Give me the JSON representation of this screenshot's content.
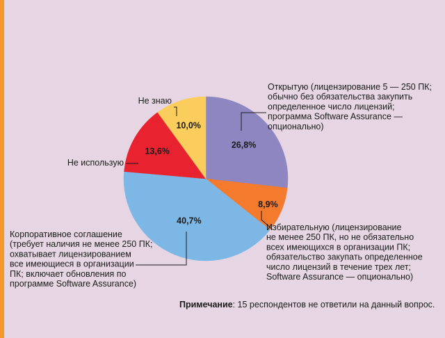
{
  "chart_data": {
    "type": "pie",
    "title": "",
    "slices": [
      {
        "label_lines": [
          "Открытую (лицензирование 5 — 250 ПК;",
          "обычно без обязательства закупить",
          "определенное число лицензий;",
          "программа Software Assurance —",
          "опционально)"
        ],
        "value": 26.8,
        "value_label": "26,8%",
        "color": "#8e86c0"
      },
      {
        "label_lines": [
          "Избирательную (лицензирование",
          "не менее 250 ПК, но не обязательно",
          "всех имеющихся в организации ПК;",
          "обязательство закупать определенное",
          "число лицензий в течение трех лет;",
          "Software Assurance — опционально)"
        ],
        "value": 8.9,
        "value_label": "8,9%",
        "color": "#f47a2d"
      },
      {
        "label_lines": [
          "Корпоративное соглашение",
          "(требует наличия не менее 250 ПК;",
          "охватывает лицензированием",
          "все имеющиеся в организации",
          "ПК; включает обновления по",
          "программе Software Assurance)"
        ],
        "value": 40.7,
        "value_label": "40,7%",
        "color": "#7db7e6"
      },
      {
        "label_lines": [
          "Не использую"
        ],
        "value": 13.6,
        "value_label": "13,6%",
        "color": "#e8232f"
      },
      {
        "label_lines": [
          "Не знаю"
        ],
        "value": 10.0,
        "value_label": "10,0%",
        "color": "#fbcd5d"
      }
    ]
  },
  "note": {
    "label": "Примечание",
    "text": ": 15 респондентов не ответили на данный вопрос."
  },
  "colors": {
    "background": "#e6d6e3",
    "accent_bar": "#f39a2a"
  }
}
